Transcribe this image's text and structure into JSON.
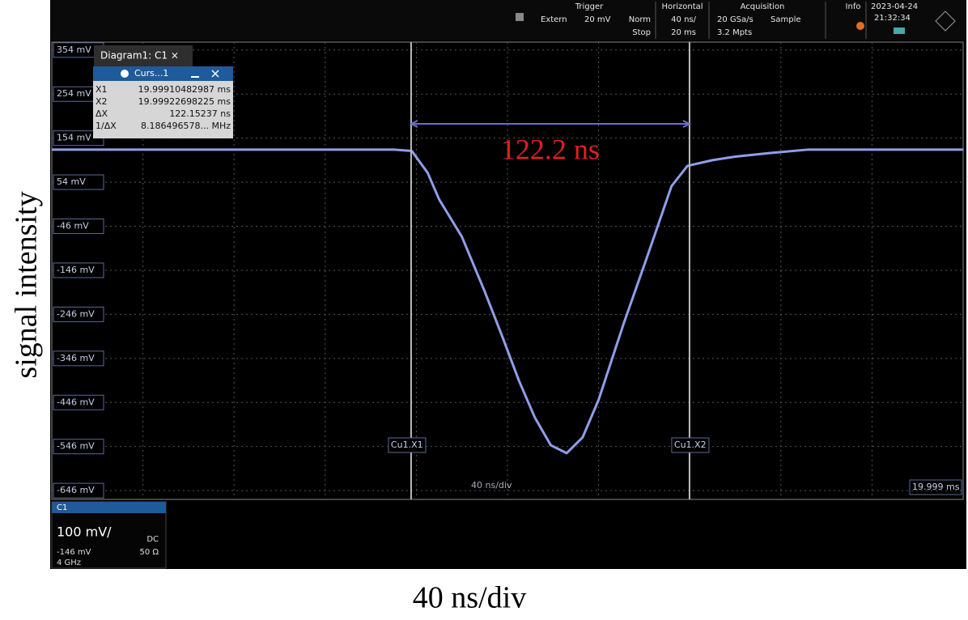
{
  "header": {
    "trigger": {
      "title": "Trigger",
      "source": "Extern",
      "level": "20 mV",
      "mode": "Norm",
      "state": "Stop"
    },
    "horizontal": {
      "title": "Horizontal",
      "scale": "40 ns/",
      "position": "20 ms"
    },
    "acquisition": {
      "title": "Acquisition",
      "rate": "20 GSa/s",
      "mode": "Sample",
      "points": "3.2 Mpts"
    },
    "info": "Info",
    "date": "2023-04-24",
    "time": "21:32:34"
  },
  "diagram_tab": "Diagram1: C1 ×",
  "cursor_panel": {
    "title": "Curs...1",
    "rows": [
      [
        "X1",
        "19.99910482987 ms"
      ],
      [
        "X2",
        "19.99922698225 ms"
      ],
      [
        "ΔX",
        "122.15237 ns"
      ],
      [
        "1/ΔX",
        "8.186496578... MHz"
      ]
    ]
  },
  "screen": {
    "timebase": "40 ns/div",
    "position": "19.999 ms"
  },
  "channel": {
    "name": "C1",
    "scale": "100 mV/",
    "coupling": "DC",
    "offset": "-146 mV",
    "impedance": "50 Ω",
    "bandwidth": "4 GHz"
  },
  "chart_data": {
    "type": "line",
    "ylabel": "signal intensity",
    "xlabel": "40 ns/div",
    "annotation": "122.2 ns",
    "x": [
      0,
      50,
      100,
      150,
      158,
      165,
      170,
      180,
      190,
      198,
      205,
      212,
      219,
      226,
      233,
      240,
      251,
      261,
      272,
      279,
      290,
      300,
      315,
      332,
      360,
      400
    ],
    "series": [
      {
        "color": "#8f9ee8",
        "values": [
          128,
          128,
          128,
          128,
          125,
          75,
          15,
          -70,
          -194,
          -300,
          -396,
          -480,
          -543,
          -561,
          -525,
          -440,
          -267,
          -120,
          45,
          91,
          104,
          112,
          120,
          128,
          128,
          128
        ]
      }
    ],
    "xlim": [
      0,
      400
    ],
    "ylim": [
      -666,
      372
    ],
    "yticks": [
      {
        "value": 354,
        "label": "354 mV"
      },
      {
        "value": 254,
        "label": "254 mV"
      },
      {
        "value": 154,
        "label": "154 mV"
      },
      {
        "value": 54,
        "label": "54 mV"
      },
      {
        "value": -46,
        "label": "-46 mV"
      },
      {
        "value": -146,
        "label": "-146 mV"
      },
      {
        "value": -246,
        "label": "-246 mV"
      },
      {
        "value": -346,
        "label": "-346 mV"
      },
      {
        "value": -446,
        "label": "-446 mV"
      },
      {
        "value": -546,
        "label": "-546 mV"
      },
      {
        "value": -646,
        "label": "-646 mV"
      }
    ],
    "grid": true,
    "cursors": [
      {
        "label": "Cu1.X1",
        "x": 157.7
      },
      {
        "label": "Cu1.X2",
        "x": 279.9
      }
    ]
  }
}
